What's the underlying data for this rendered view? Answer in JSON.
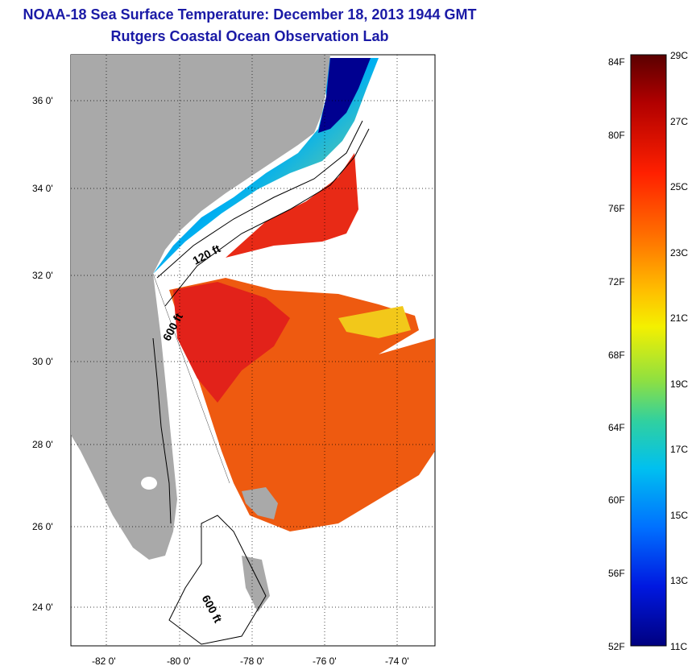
{
  "title": "NOAA-18 Sea Surface Temperature:  December 18, 2013 1944 GMT",
  "subtitle": "Rutgers Coastal Ocean Observation Lab",
  "map": {
    "lat_ticks": [
      "36 0'",
      "34 0'",
      "32 0'",
      "30 0'",
      "28 0'",
      "26 0'",
      "24 0'"
    ],
    "lon_ticks": [
      "-82 0'",
      "-80 0'",
      "-78 0'",
      "-76 0'",
      "-74 0'"
    ],
    "isobath_labels": [
      "120 ft",
      "600 ft",
      "600 ft"
    ]
  },
  "colorbar": {
    "fahrenheit": [
      "84F",
      "80F",
      "76F",
      "72F",
      "68F",
      "64F",
      "60F",
      "56F",
      "52F"
    ],
    "celsius": [
      "29C",
      "27C",
      "25C",
      "23C",
      "21C",
      "19C",
      "17C",
      "15C",
      "13C",
      "11C"
    ]
  },
  "colors": {
    "land": "#a9a9a9",
    "title": "#1a1aa6"
  }
}
